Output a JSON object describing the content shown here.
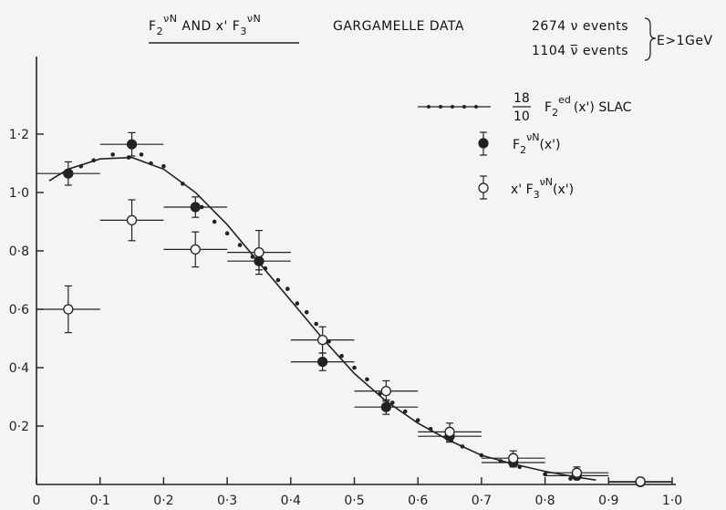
{
  "chart_data": {
    "type": "scatter",
    "title": {
      "line1_parts": [
        "F",
        "2",
        "νN",
        " AND  x' F",
        "3",
        "νN"
      ],
      "experiment": "GARGAMELLE  DATA",
      "events_nu": "2674  ν events",
      "events_nubar": "1104  ν̅ events",
      "energy_cut": "E>1GeV"
    },
    "xlim": [
      0,
      1.0
    ],
    "ylim": [
      0,
      1.2
    ],
    "x_ticks": [
      "0",
      "0·1",
      "0·2",
      "0·3",
      "0·4",
      "0·5",
      "0·6",
      "0·7",
      "0·8",
      "0·9",
      "1·0"
    ],
    "x_tick_values": [
      0,
      0.1,
      0.2,
      0.3,
      0.4,
      0.5,
      0.6,
      0.7,
      0.8,
      0.9,
      1.0
    ],
    "y_ticks": [
      "0·2",
      "0·4",
      "0·6",
      "0·8",
      "1·0",
      "1·2"
    ],
    "y_tick_values": [
      0.2,
      0.4,
      0.6,
      0.8,
      1.0,
      1.2
    ],
    "legend": {
      "slac": {
        "num": "18",
        "den": "10",
        "text1": "F",
        "sub": "2",
        "sup": "ed",
        "text2": "(x') SLAC"
      },
      "f2": {
        "text1": "F",
        "sub": "2",
        "sup": "νN",
        "text2": "(x')"
      },
      "xf3": {
        "text1": "x' F",
        "sub": "3",
        "sup": "νN",
        "text2": "(x')"
      }
    },
    "series": [
      {
        "marker": "filled-circle",
        "points": [
          {
            "x": 0.05,
            "y": 1.065,
            "xerr": 0.05,
            "yerr": 0.04
          },
          {
            "x": 0.15,
            "y": 1.165,
            "xerr": 0.05,
            "yerr": 0.04
          },
          {
            "x": 0.25,
            "y": 0.95,
            "xerr": 0.05,
            "yerr": 0.035
          },
          {
            "x": 0.35,
            "y": 0.765,
            "xerr": 0.05,
            "yerr": 0.03
          },
          {
            "x": 0.45,
            "y": 0.42,
            "xerr": 0.05,
            "yerr": 0.03
          },
          {
            "x": 0.55,
            "y": 0.265,
            "xerr": 0.05,
            "yerr": 0.025
          },
          {
            "x": 0.65,
            "y": 0.165,
            "xerr": 0.05,
            "yerr": 0.02
          },
          {
            "x": 0.75,
            "y": 0.075,
            "xerr": 0.05,
            "yerr": 0.015
          },
          {
            "x": 0.85,
            "y": 0.03,
            "xerr": 0.05,
            "yerr": 0.01
          },
          {
            "x": 0.95,
            "y": 0.008,
            "xerr": 0.05,
            "yerr": 0.005
          }
        ]
      },
      {
        "marker": "open-circle",
        "points": [
          {
            "x": 0.05,
            "y": 0.6,
            "xerr": 0.05,
            "yerr": 0.08
          },
          {
            "x": 0.15,
            "y": 0.905,
            "xerr": 0.05,
            "yerr": 0.07
          },
          {
            "x": 0.25,
            "y": 0.805,
            "xerr": 0.05,
            "yerr": 0.06
          },
          {
            "x": 0.35,
            "y": 0.795,
            "xerr": 0.05,
            "yerr": 0.075
          },
          {
            "x": 0.45,
            "y": 0.495,
            "xerr": 0.05,
            "yerr": 0.045
          },
          {
            "x": 0.55,
            "y": 0.32,
            "xerr": 0.05,
            "yerr": 0.035
          },
          {
            "x": 0.65,
            "y": 0.18,
            "xerr": 0.05,
            "yerr": 0.03
          },
          {
            "x": 0.75,
            "y": 0.09,
            "xerr": 0.05,
            "yerr": 0.025
          },
          {
            "x": 0.85,
            "y": 0.04,
            "xerr": 0.05,
            "yerr": 0.02
          },
          {
            "x": 0.95,
            "y": 0.01,
            "xerr": 0.05,
            "yerr": 0.005
          }
        ]
      },
      {
        "marker": "small-dot",
        "points": [
          {
            "x": 0.07,
            "y": 1.09
          },
          {
            "x": 0.09,
            "y": 1.11
          },
          {
            "x": 0.12,
            "y": 1.13
          },
          {
            "x": 0.145,
            "y": 1.12
          },
          {
            "x": 0.165,
            "y": 1.13
          },
          {
            "x": 0.18,
            "y": 1.1
          },
          {
            "x": 0.2,
            "y": 1.09
          },
          {
            "x": 0.23,
            "y": 1.03
          },
          {
            "x": 0.26,
            "y": 0.95
          },
          {
            "x": 0.28,
            "y": 0.9
          },
          {
            "x": 0.3,
            "y": 0.86
          },
          {
            "x": 0.32,
            "y": 0.82
          },
          {
            "x": 0.34,
            "y": 0.78
          },
          {
            "x": 0.36,
            "y": 0.74
          },
          {
            "x": 0.38,
            "y": 0.7
          },
          {
            "x": 0.395,
            "y": 0.67
          },
          {
            "x": 0.41,
            "y": 0.62
          },
          {
            "x": 0.425,
            "y": 0.59
          },
          {
            "x": 0.44,
            "y": 0.55
          },
          {
            "x": 0.46,
            "y": 0.49
          },
          {
            "x": 0.48,
            "y": 0.44
          },
          {
            "x": 0.5,
            "y": 0.4
          },
          {
            "x": 0.52,
            "y": 0.36
          },
          {
            "x": 0.54,
            "y": 0.31
          },
          {
            "x": 0.56,
            "y": 0.28
          },
          {
            "x": 0.58,
            "y": 0.25
          },
          {
            "x": 0.6,
            "y": 0.22
          },
          {
            "x": 0.62,
            "y": 0.19
          },
          {
            "x": 0.645,
            "y": 0.16
          },
          {
            "x": 0.67,
            "y": 0.13
          },
          {
            "x": 0.7,
            "y": 0.1
          },
          {
            "x": 0.73,
            "y": 0.08
          },
          {
            "x": 0.76,
            "y": 0.06
          },
          {
            "x": 0.8,
            "y": 0.035
          },
          {
            "x": 0.84,
            "y": 0.02
          }
        ]
      }
    ],
    "curve": [
      [
        0.02,
        1.04
      ],
      [
        0.05,
        1.08
      ],
      [
        0.1,
        1.115
      ],
      [
        0.15,
        1.12
      ],
      [
        0.2,
        1.08
      ],
      [
        0.25,
        1.0
      ],
      [
        0.3,
        0.89
      ],
      [
        0.35,
        0.76
      ],
      [
        0.4,
        0.63
      ],
      [
        0.45,
        0.5
      ],
      [
        0.5,
        0.38
      ],
      [
        0.55,
        0.285
      ],
      [
        0.6,
        0.21
      ],
      [
        0.65,
        0.15
      ],
      [
        0.7,
        0.1
      ],
      [
        0.75,
        0.07
      ],
      [
        0.8,
        0.045
      ],
      [
        0.85,
        0.025
      ],
      [
        0.88,
        0.015
      ]
    ]
  }
}
